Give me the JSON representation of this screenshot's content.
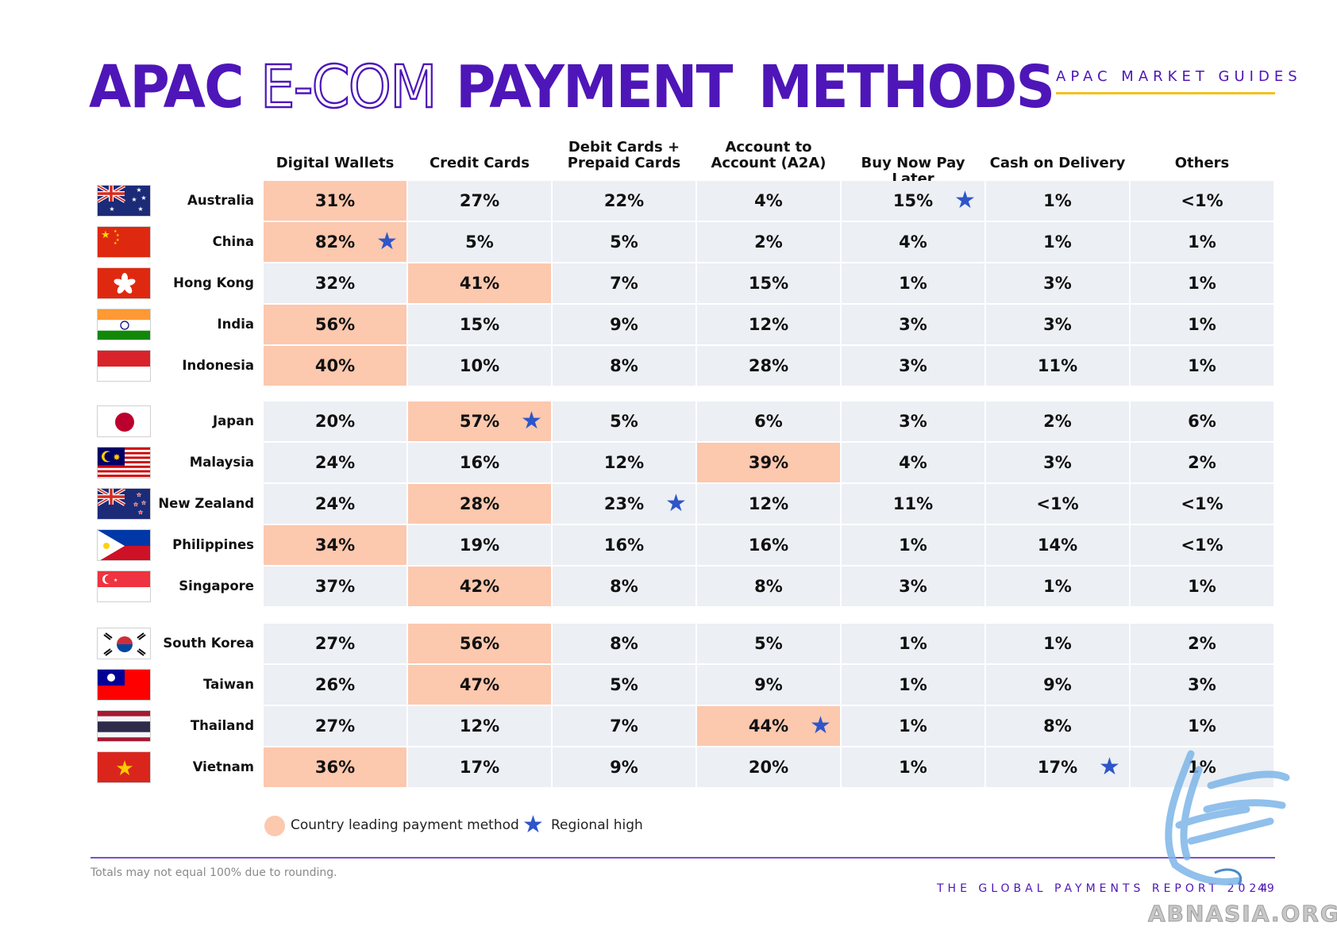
{
  "title": {
    "w1": "APAC",
    "w2": "E-COM",
    "w3": "PAYMENT",
    "w4": "METHODS"
  },
  "guides": "APAC MARKET GUIDES",
  "columns": [
    {
      "l1": "",
      "l2": "Digital Wallets"
    },
    {
      "l1": "",
      "l2": "Credit Cards"
    },
    {
      "l1": "Debit Cards +",
      "l2": "Prepaid Cards"
    },
    {
      "l1": "Account to",
      "l2": "Account (A2A)"
    },
    {
      "l1": "",
      "l2": "Buy Now Pay Later"
    },
    {
      "l1": "",
      "l2": "Cash on Delivery"
    },
    {
      "l1": "",
      "l2": "Others"
    }
  ],
  "rows": [
    {
      "country": "Australia",
      "values": [
        "31%",
        "27%",
        "22%",
        "4%",
        "15%",
        "1%",
        "<1%"
      ],
      "lead": 0,
      "star": 4
    },
    {
      "country": "China",
      "values": [
        "82%",
        "5%",
        "5%",
        "2%",
        "4%",
        "1%",
        "1%"
      ],
      "lead": 0,
      "star": 0
    },
    {
      "country": "Hong Kong",
      "values": [
        "32%",
        "41%",
        "7%",
        "15%",
        "1%",
        "3%",
        "1%"
      ],
      "lead": 1,
      "star": -1
    },
    {
      "country": "India",
      "values": [
        "56%",
        "15%",
        "9%",
        "12%",
        "3%",
        "3%",
        "1%"
      ],
      "lead": 0,
      "star": -1
    },
    {
      "country": "Indonesia",
      "values": [
        "40%",
        "10%",
        "8%",
        "28%",
        "3%",
        "11%",
        "1%"
      ],
      "lead": 0,
      "star": -1
    },
    {
      "country": "Japan",
      "values": [
        "20%",
        "57%",
        "5%",
        "6%",
        "3%",
        "2%",
        "6%"
      ],
      "lead": 1,
      "star": 1
    },
    {
      "country": "Malaysia",
      "values": [
        "24%",
        "16%",
        "12%",
        "39%",
        "4%",
        "3%",
        "2%"
      ],
      "lead": 3,
      "star": -1
    },
    {
      "country": "New Zealand",
      "values": [
        "24%",
        "28%",
        "23%",
        "12%",
        "11%",
        "<1%",
        "<1%"
      ],
      "lead": 1,
      "star": 2
    },
    {
      "country": "Philippines",
      "values": [
        "34%",
        "19%",
        "16%",
        "16%",
        "1%",
        "14%",
        "<1%"
      ],
      "lead": 0,
      "star": -1
    },
    {
      "country": "Singapore",
      "values": [
        "37%",
        "42%",
        "8%",
        "8%",
        "3%",
        "1%",
        "1%"
      ],
      "lead": 1,
      "star": -1
    },
    {
      "country": "South Korea",
      "values": [
        "27%",
        "56%",
        "8%",
        "5%",
        "1%",
        "1%",
        "2%"
      ],
      "lead": 1,
      "star": -1
    },
    {
      "country": "Taiwan",
      "values": [
        "26%",
        "47%",
        "5%",
        "9%",
        "1%",
        "9%",
        "3%"
      ],
      "lead": 1,
      "star": -1
    },
    {
      "country": "Thailand",
      "values": [
        "27%",
        "12%",
        "7%",
        "44%",
        "1%",
        "8%",
        "1%"
      ],
      "lead": 3,
      "star": 3
    },
    {
      "country": "Vietnam",
      "values": [
        "36%",
        "17%",
        "9%",
        "20%",
        "1%",
        "17%",
        "1%"
      ],
      "lead": 0,
      "star": 5
    }
  ],
  "flags": [
    "au",
    "cn",
    "hk",
    "in",
    "id",
    "jp",
    "my",
    "nz",
    "ph",
    "sg",
    "kr",
    "tw",
    "th",
    "vn"
  ],
  "legend": {
    "lead_label": "Country leading payment method",
    "star_label": "Regional high",
    "star_icon": "★"
  },
  "footnote": "Totals may not equal 100% due to rounding.",
  "footer": "THE GLOBAL PAYMENTS REPORT 2024",
  "page_number": "49",
  "watermark": "ABNASIA.ORG",
  "colors": {
    "brand": "#4e16b8",
    "lead": "#fcc8ae",
    "cell": "#eceff4",
    "star": "#2e56c9",
    "rule": "#f2c21b"
  }
}
